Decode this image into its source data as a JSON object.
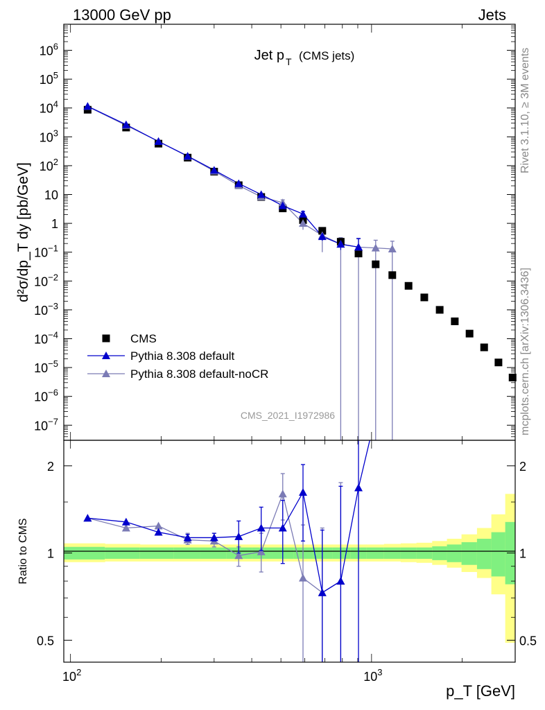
{
  "header": {
    "left": "13000 GeV pp",
    "right": "Jets"
  },
  "side_labels": {
    "rivet": "Rivet 3.1.10, ≥ 3M events",
    "mcplots": "mcplots.cern.ch [arXiv:1306.3436]"
  },
  "chart_data": [
    {
      "type": "scatter",
      "panel": "main",
      "title_main": "Jet p",
      "title_sub": "T",
      "title_tail": "(CMS jets)",
      "watermark": "CMS_2021_I1972986",
      "ylabel": "d²σ/dp_T dy [pb/GeV]",
      "yscale": "log",
      "xscale": "log",
      "xlim": [
        95,
        3000
      ],
      "ylim": [
        3e-08,
        8000000.0
      ],
      "legend_position": "lower-left",
      "y_ticks": [
        {
          "v": 1000000.0,
          "base": "10",
          "exp": "6"
        },
        {
          "v": 100000.0,
          "base": "10",
          "exp": "5"
        },
        {
          "v": 10000.0,
          "base": "10",
          "exp": "4"
        },
        {
          "v": 1000.0,
          "base": "10",
          "exp": "3"
        },
        {
          "v": 100.0,
          "base": "10",
          "exp": "2"
        },
        {
          "v": 10,
          "base": "10",
          "exp": ""
        },
        {
          "v": 1,
          "base": "1",
          "exp": ""
        },
        {
          "v": 0.1,
          "base": "10",
          "exp": "−1"
        },
        {
          "v": 0.01,
          "base": "10",
          "exp": "−2"
        },
        {
          "v": 0.001,
          "base": "10",
          "exp": "−3"
        },
        {
          "v": 0.0001,
          "base": "10",
          "exp": "−4"
        },
        {
          "v": 1e-05,
          "base": "10",
          "exp": "−5"
        },
        {
          "v": 1e-06,
          "base": "10",
          "exp": "−6"
        },
        {
          "v": 1e-07,
          "base": "10",
          "exp": "−7"
        }
      ],
      "series": [
        {
          "name": "CMS",
          "color": "#000000",
          "marker": "square",
          "x": [
            114,
            153,
            196,
            245,
            300,
            362,
            430,
            507,
            592,
            686,
            790,
            905,
            1032,
            1172,
            1327,
            1497,
            1684,
            1890,
            2116,
            2366,
            2640,
            2941
          ],
          "y": [
            8700,
            2100,
            580,
            190,
            62,
            21,
            8.2,
            3.3,
            1.3,
            0.55,
            0.23,
            0.09,
            0.038,
            0.016,
            0.0068,
            0.0027,
            0.001,
            0.0004,
            0.00015,
            5e-05,
            1.5e-05,
            4.5e-06
          ]
        },
        {
          "name": "Pythia 8.308 default",
          "color": "#0000cc",
          "marker": "triangle",
          "x": [
            114,
            153,
            196,
            245,
            300,
            362,
            430,
            507,
            592,
            686,
            790,
            905
          ],
          "y": [
            11500,
            2650,
            690,
            215,
            70,
            24,
            10,
            4.1,
            2.1,
            0.35,
            0.19,
            0.15
          ],
          "err_lo": [
            null,
            null,
            null,
            null,
            null,
            null,
            null,
            null,
            1.5,
            0.25,
            0.12,
            0.15
          ],
          "err_hi": [
            null,
            null,
            null,
            null,
            null,
            null,
            null,
            null,
            2.6,
            0.45,
            0.25,
            0.3
          ]
        },
        {
          "name": "Pythia 8.308 default-noCR",
          "color": "#7b7bb5",
          "marker": "triangle",
          "x": [
            114,
            153,
            196,
            245,
            300,
            362,
            430,
            507,
            592,
            686,
            790,
            905,
            1032,
            1172
          ],
          "y": [
            11300,
            2500,
            700,
            210,
            65,
            20.5,
            8.3,
            5.2,
            1.0,
            0.38,
            0.19,
            0.15,
            0.14,
            0.13
          ],
          "err_lo": [
            null,
            null,
            null,
            null,
            null,
            null,
            7,
            4.5,
            0.6,
            0.1,
            1e-08,
            1e-08,
            1e-08,
            1e-08
          ],
          "err_hi": [
            null,
            null,
            null,
            null,
            null,
            null,
            10,
            6.5,
            1.4,
            0.55,
            0.32,
            0.29,
            0.26,
            0.24
          ]
        }
      ]
    },
    {
      "type": "scatter",
      "panel": "ratio",
      "ylabel": "Ratio to CMS",
      "xlabel": "p_T [GeV]",
      "xscale": "log",
      "yscale": "log",
      "xlim": [
        95,
        3000
      ],
      "ylim": [
        0.42,
        2.45
      ],
      "x_ticks": [
        {
          "v": 100,
          "base": "10",
          "exp": "2"
        },
        {
          "v": 1000,
          "base": "10",
          "exp": "3"
        }
      ],
      "y_ticks": [
        {
          "v": 0.5,
          "label": "0.5"
        },
        {
          "v": 1,
          "label": "1"
        },
        {
          "v": 2,
          "label": "2"
        }
      ],
      "bands": {
        "edges": [
          95,
          130,
          170,
          220,
          270,
          330,
          400,
          470,
          550,
          640,
          740,
          850,
          960,
          1100,
          1250,
          1410,
          1590,
          1780,
          1990,
          2240,
          2500,
          2780,
          3000
        ],
        "inner": [
          [
            0.95,
            1.05
          ],
          [
            0.955,
            1.045
          ],
          [
            0.955,
            1.045
          ],
          [
            0.955,
            1.045
          ],
          [
            0.955,
            1.045
          ],
          [
            0.955,
            1.045
          ],
          [
            0.955,
            1.045
          ],
          [
            0.955,
            1.045
          ],
          [
            0.955,
            1.045
          ],
          [
            0.955,
            1.045
          ],
          [
            0.955,
            1.045
          ],
          [
            0.955,
            1.045
          ],
          [
            0.955,
            1.045
          ],
          [
            0.955,
            1.045
          ],
          [
            0.955,
            1.045
          ],
          [
            0.955,
            1.045
          ],
          [
            0.945,
            1.055
          ],
          [
            0.93,
            1.07
          ],
          [
            0.91,
            1.09
          ],
          [
            0.88,
            1.12
          ],
          [
            0.83,
            1.18
          ],
          [
            0.78,
            1.28
          ]
        ],
        "outer": [
          [
            0.93,
            1.08
          ],
          [
            0.935,
            1.075
          ],
          [
            0.935,
            1.07
          ],
          [
            0.935,
            1.07
          ],
          [
            0.935,
            1.07
          ],
          [
            0.935,
            1.07
          ],
          [
            0.935,
            1.07
          ],
          [
            0.935,
            1.07
          ],
          [
            0.935,
            1.07
          ],
          [
            0.935,
            1.07
          ],
          [
            0.935,
            1.07
          ],
          [
            0.935,
            1.07
          ],
          [
            0.935,
            1.07
          ],
          [
            0.935,
            1.075
          ],
          [
            0.93,
            1.08
          ],
          [
            0.925,
            1.085
          ],
          [
            0.91,
            1.1
          ],
          [
            0.89,
            1.12
          ],
          [
            0.86,
            1.16
          ],
          [
            0.82,
            1.22
          ],
          [
            0.72,
            1.36
          ],
          [
            0.49,
            1.6
          ]
        ],
        "inner_color": "#80f080",
        "outer_color": "#ffff88"
      },
      "series": [
        {
          "name": "Pythia 8.308 default",
          "color": "#0000cc",
          "x": [
            114,
            153,
            196,
            245,
            300,
            362,
            430,
            507,
            592,
            686,
            790,
            905,
            1000
          ],
          "y": [
            1.32,
            1.28,
            1.18,
            1.13,
            1.13,
            1.14,
            1.22,
            1.22,
            1.62,
            0.73,
            0.8,
            1.68,
            2.6
          ],
          "err_lo": [
            null,
            null,
            null,
            1.1,
            1.1,
            1.0,
            1.02,
            0.92,
            1.1,
            0.3,
            0.3,
            0.3,
            null
          ],
          "err_hi": [
            null,
            null,
            null,
            1.16,
            1.17,
            1.29,
            1.44,
            1.52,
            2.02,
            1.2,
            1.7,
            2.5,
            null
          ]
        },
        {
          "name": "Pythia 8.308 default-noCR",
          "color": "#7b7bb5",
          "x": [
            114,
            153,
            196,
            245,
            300,
            362,
            430,
            507,
            592,
            686,
            790
          ],
          "y": [
            1.32,
            1.22,
            1.24,
            1.11,
            1.1,
            0.98,
            1.01,
            1.6,
            0.82,
            0.73,
            0.8
          ],
          "err_lo": [
            null,
            null,
            null,
            1.07,
            1.05,
            0.9,
            0.86,
            1.3,
            0.38,
            0.3,
            0.3
          ],
          "err_hi": [
            null,
            null,
            null,
            1.17,
            1.17,
            1.05,
            1.17,
            1.88,
            1.25,
            1.22,
            1.75
          ]
        }
      ]
    }
  ]
}
